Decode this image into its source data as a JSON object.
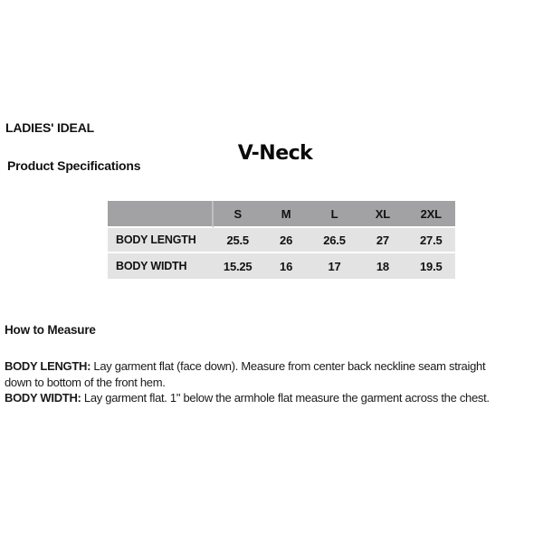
{
  "header": {
    "brand": "LADIES' IDEAL",
    "section_title": "Product Specifications",
    "product_title": "V-Neck"
  },
  "spec_table": {
    "type": "table",
    "size_headers": [
      "S",
      "M",
      "L",
      "XL",
      "2XL"
    ],
    "rows": [
      {
        "label": "BODY LENGTH",
        "values": [
          "25.5",
          "26",
          "26.5",
          "27",
          "27.5"
        ]
      },
      {
        "label": "BODY WIDTH",
        "values": [
          "15.25",
          "16",
          "17",
          "18",
          "19.5"
        ]
      }
    ]
  },
  "how_to_measure": {
    "heading": "How to Measure",
    "instructions": [
      {
        "term": "BODY LENGTH:",
        "text": "Lay garment flat (face down). Measure from center back neckline seam straight down to bottom of the front hem."
      },
      {
        "term": "BODY WIDTH:",
        "text": "Lay garment flat. 1\" below the armhole flat measure the garment across the chest."
      }
    ]
  },
  "colors": {
    "table_header_bg": "#a2a2a4",
    "table_row_bg": "#e3e3e3",
    "page_bg": "#ffffff",
    "text": "#161616"
  }
}
